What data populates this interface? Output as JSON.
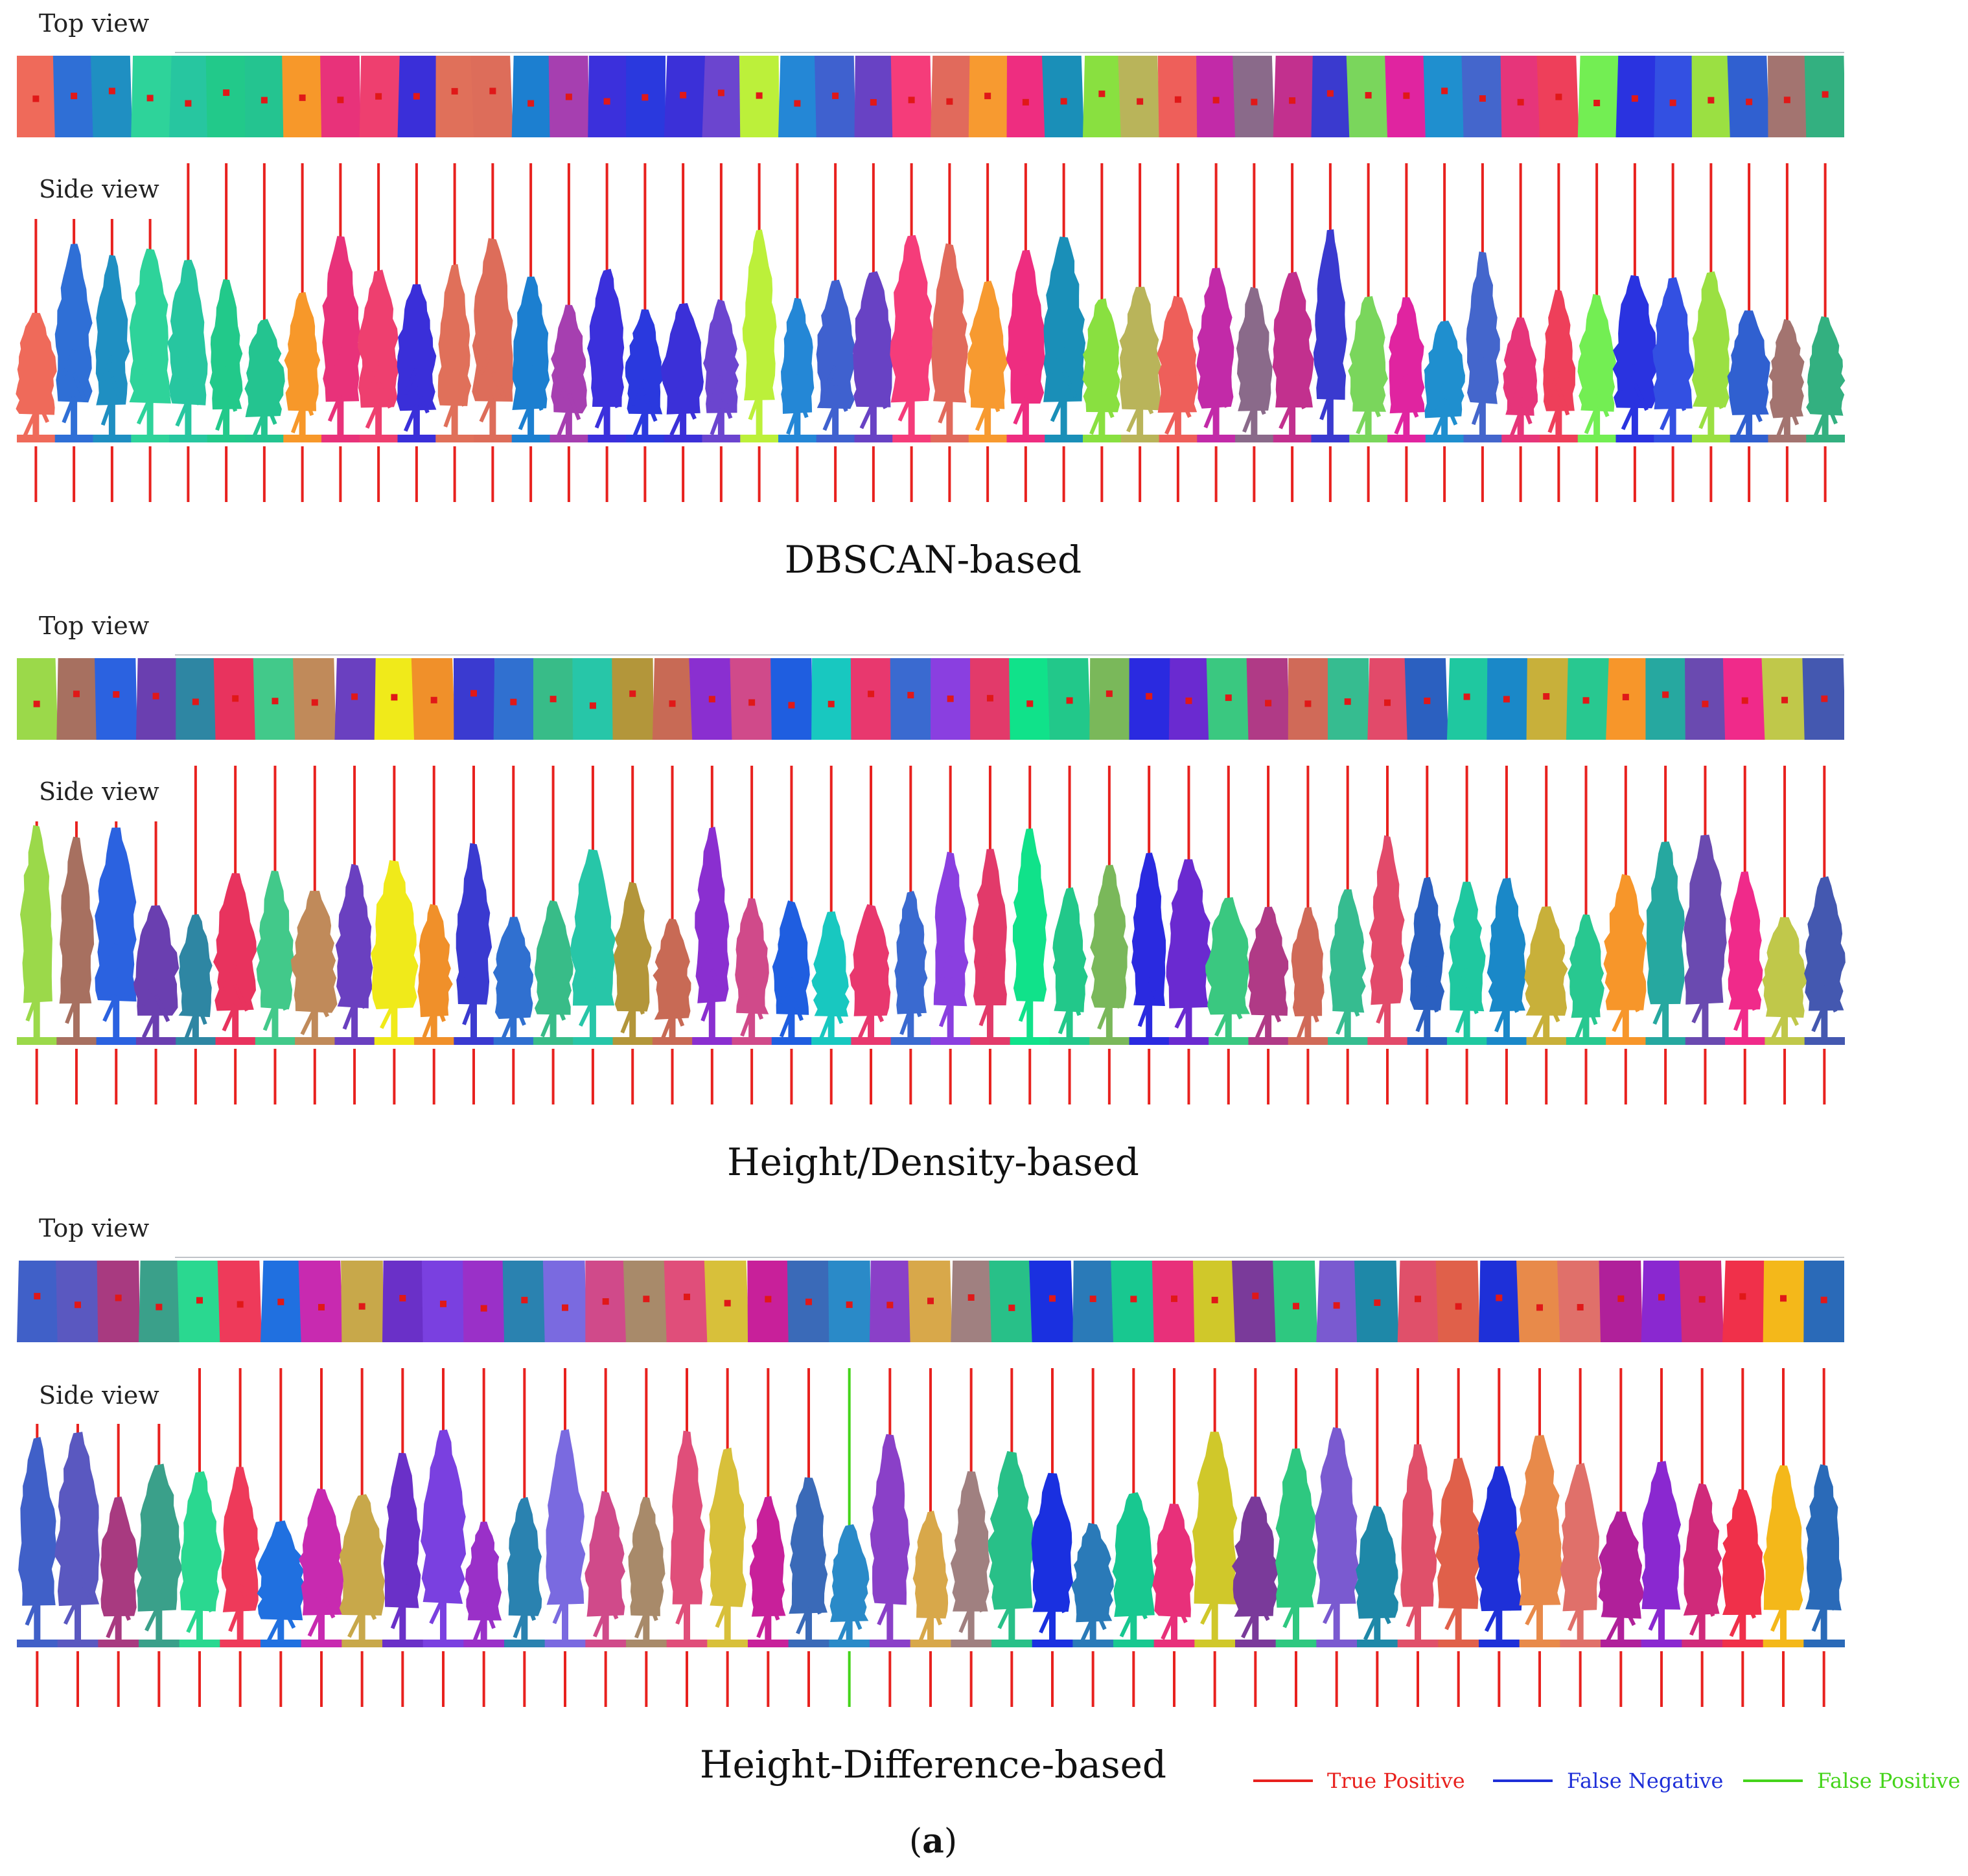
{
  "labels": {
    "top_view": "Top view",
    "side_view": "Side view"
  },
  "panels": [
    {
      "title": "DBSCAN-based",
      "colors": [
        "#ef6a5a",
        "#2f6fd6",
        "#1f8fc2",
        "#2ed39a",
        "#27c6a0",
        "#22c98a",
        "#24c490",
        "#f7982a",
        "#e8327a",
        "#ee3f6f",
        "#3a2fd9",
        "#e0705a",
        "#dd6d5a",
        "#1c7fd0",
        "#a63fb0",
        "#3b30dc",
        "#2a39de",
        "#3b30d8",
        "#6b45cf",
        "#bcf03a",
        "#2487d6",
        "#3f61cf",
        "#6842c4",
        "#f53c7a",
        "#e16a5c",
        "#f79a30",
        "#ee2d80",
        "#1a8fb8",
        "#89e040",
        "#b9b45a",
        "#ee5f5a",
        "#c22aa8",
        "#8a6a8a",
        "#c2308e",
        "#3a3acf",
        "#7ad65c",
        "#e024a0",
        "#1f8fcf",
        "#4466cc",
        "#e6357a",
        "#ee3f5a",
        "#73ee53",
        "#2a33e0",
        "#3350e2",
        "#9be042",
        "#3060d0",
        "#a37470",
        "#33b080"
      ],
      "false_negative": [],
      "false_positive": []
    },
    {
      "title": "Height/Density-based",
      "colors": [
        "#9bd94a",
        "#a77060",
        "#2b62e0",
        "#6a3fb0",
        "#2e86a3",
        "#e8335e",
        "#42c98a",
        "#c08a5a",
        "#6a40c0",
        "#f0ea1a",
        "#f0902a",
        "#3a3ad0",
        "#3070d0",
        "#38bc88",
        "#27c6a8",
        "#b3963a",
        "#c86a55",
        "#8a2fd0",
        "#d04a8a",
        "#1f5ee0",
        "#18c8c0",
        "#e8386e",
        "#3a6ad0",
        "#8a3fe0",
        "#e23a6a",
        "#10e28a",
        "#22c88a",
        "#7ab85a",
        "#2a2ae0",
        "#6a2ad0",
        "#3ac880",
        "#b03a86",
        "#d06a58",
        "#36bc90",
        "#e24a6a",
        "#2b60c0",
        "#1fc8a0",
        "#1a88c8",
        "#c8b03a",
        "#28c890",
        "#f7962a",
        "#26a8a0",
        "#6a4ab0",
        "#f02a8a",
        "#c0c84a",
        "#4458b0"
      ],
      "false_negative": [],
      "false_positive": []
    },
    {
      "title": "Height-Difference-based",
      "colors": [
        "#4060c8",
        "#5a58c0",
        "#a83a80",
        "#3aa08a",
        "#2ad890",
        "#ee3a5a",
        "#2070e0",
        "#c82ab0",
        "#c8a84a",
        "#6a30c8",
        "#7a40e0",
        "#9a30c8",
        "#2a82b0",
        "#7a6ae0",
        "#d04a8a",
        "#a88a6a",
        "#e04e7a",
        "#d8c03a",
        "#c8209a",
        "#3a6ab8",
        "#2a8ac8",
        "#8a40c8",
        "#d8a84a",
        "#a08080",
        "#28c088",
        "#1a30e0",
        "#2a7ab8",
        "#18c890",
        "#e8307a",
        "#d0c82a",
        "#7a3a9a",
        "#2ec880",
        "#7a5ad0",
        "#1e88a8",
        "#e0506a",
        "#e0604a",
        "#1e30d8",
        "#e88a4a",
        "#e0706a",
        "#b0209a",
        "#8a28d0",
        "#d02a7a",
        "#f0304a",
        "#f4b81a",
        "#2a6ab8"
      ],
      "false_negative": [],
      "false_positive": [
        20
      ]
    }
  ],
  "legend": {
    "true_positive": {
      "label": "True Positive",
      "color": "#e8211e"
    },
    "false_negative": {
      "label": "False Negative",
      "color": "#1e2fd8"
    },
    "false_positive": {
      "label": "False Positive",
      "color": "#44d41a"
    }
  },
  "caption_letter": "a"
}
